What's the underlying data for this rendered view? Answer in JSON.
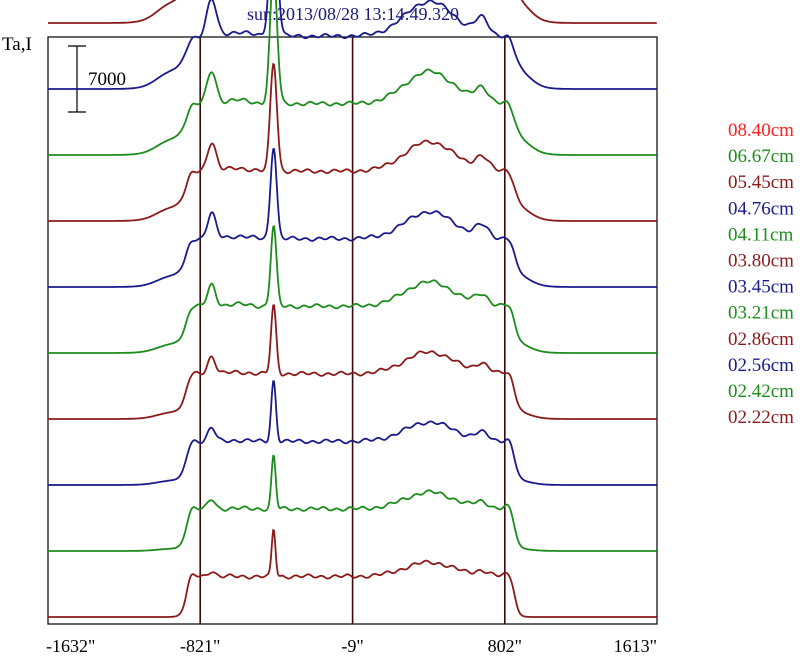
{
  "title": "sun:2013/08/28 13:14:49.320",
  "title_color": "#1a1a7a",
  "chart_data": {
    "type": "line",
    "title": "sun:2013/08/28 13:14:49.320",
    "ylabel": "Ta,I",
    "xlabel": "",
    "x_range": [
      -1632,
      1613
    ],
    "x_ticks": [
      -1632,
      -821,
      -9,
      802,
      1613
    ],
    "x_tick_labels": [
      "-1632\"",
      "-821\"",
      "-9\"",
      "802\"",
      "1613\""
    ],
    "vertical_lines_x": [
      -821,
      -9,
      802
    ],
    "scale_bar": {
      "label": "7000",
      "value": 7000
    },
    "grid": false,
    "legend_placement": "right",
    "series": [
      {
        "name": "08.40cm",
        "color": "#ff2020",
        "baseline_offset": 77000,
        "peak": 18000
      },
      {
        "name": "06.67cm",
        "color": "#1c8c1c",
        "baseline_offset": 70000,
        "peak": 18200
      },
      {
        "name": "05.45cm",
        "color": "#8b1a1a",
        "baseline_offset": 63000,
        "peak": 16000
      },
      {
        "name": "04.76cm",
        "color": "#1a1a8c",
        "baseline_offset": 56000,
        "peak": 14600
      },
      {
        "name": "04.11cm",
        "color": "#1c8c1c",
        "baseline_offset": 49000,
        "peak": 13800
      },
      {
        "name": "03.80cm",
        "color": "#8b1a1a",
        "baseline_offset": 42000,
        "peak": 11500
      },
      {
        "name": "03.45cm",
        "color": "#1a1a8c",
        "baseline_offset": 35000,
        "peak": 9800
      },
      {
        "name": "03.21cm",
        "color": "#1c8c1c",
        "baseline_offset": 28000,
        "peak": 8500
      },
      {
        "name": "02.86cm",
        "color": "#8b1a1a",
        "baseline_offset": 21000,
        "peak": 7200
      },
      {
        "name": "02.56cm",
        "color": "#1a1a8c",
        "baseline_offset": 14000,
        "peak": 6400
      },
      {
        "name": "02.42cm",
        "color": "#1c8c1c",
        "baseline_offset": 7000,
        "peak": 5600
      },
      {
        "name": "02.22cm",
        "color": "#8b1a1a",
        "baseline_offset": 0,
        "peak": 5000
      }
    ]
  }
}
